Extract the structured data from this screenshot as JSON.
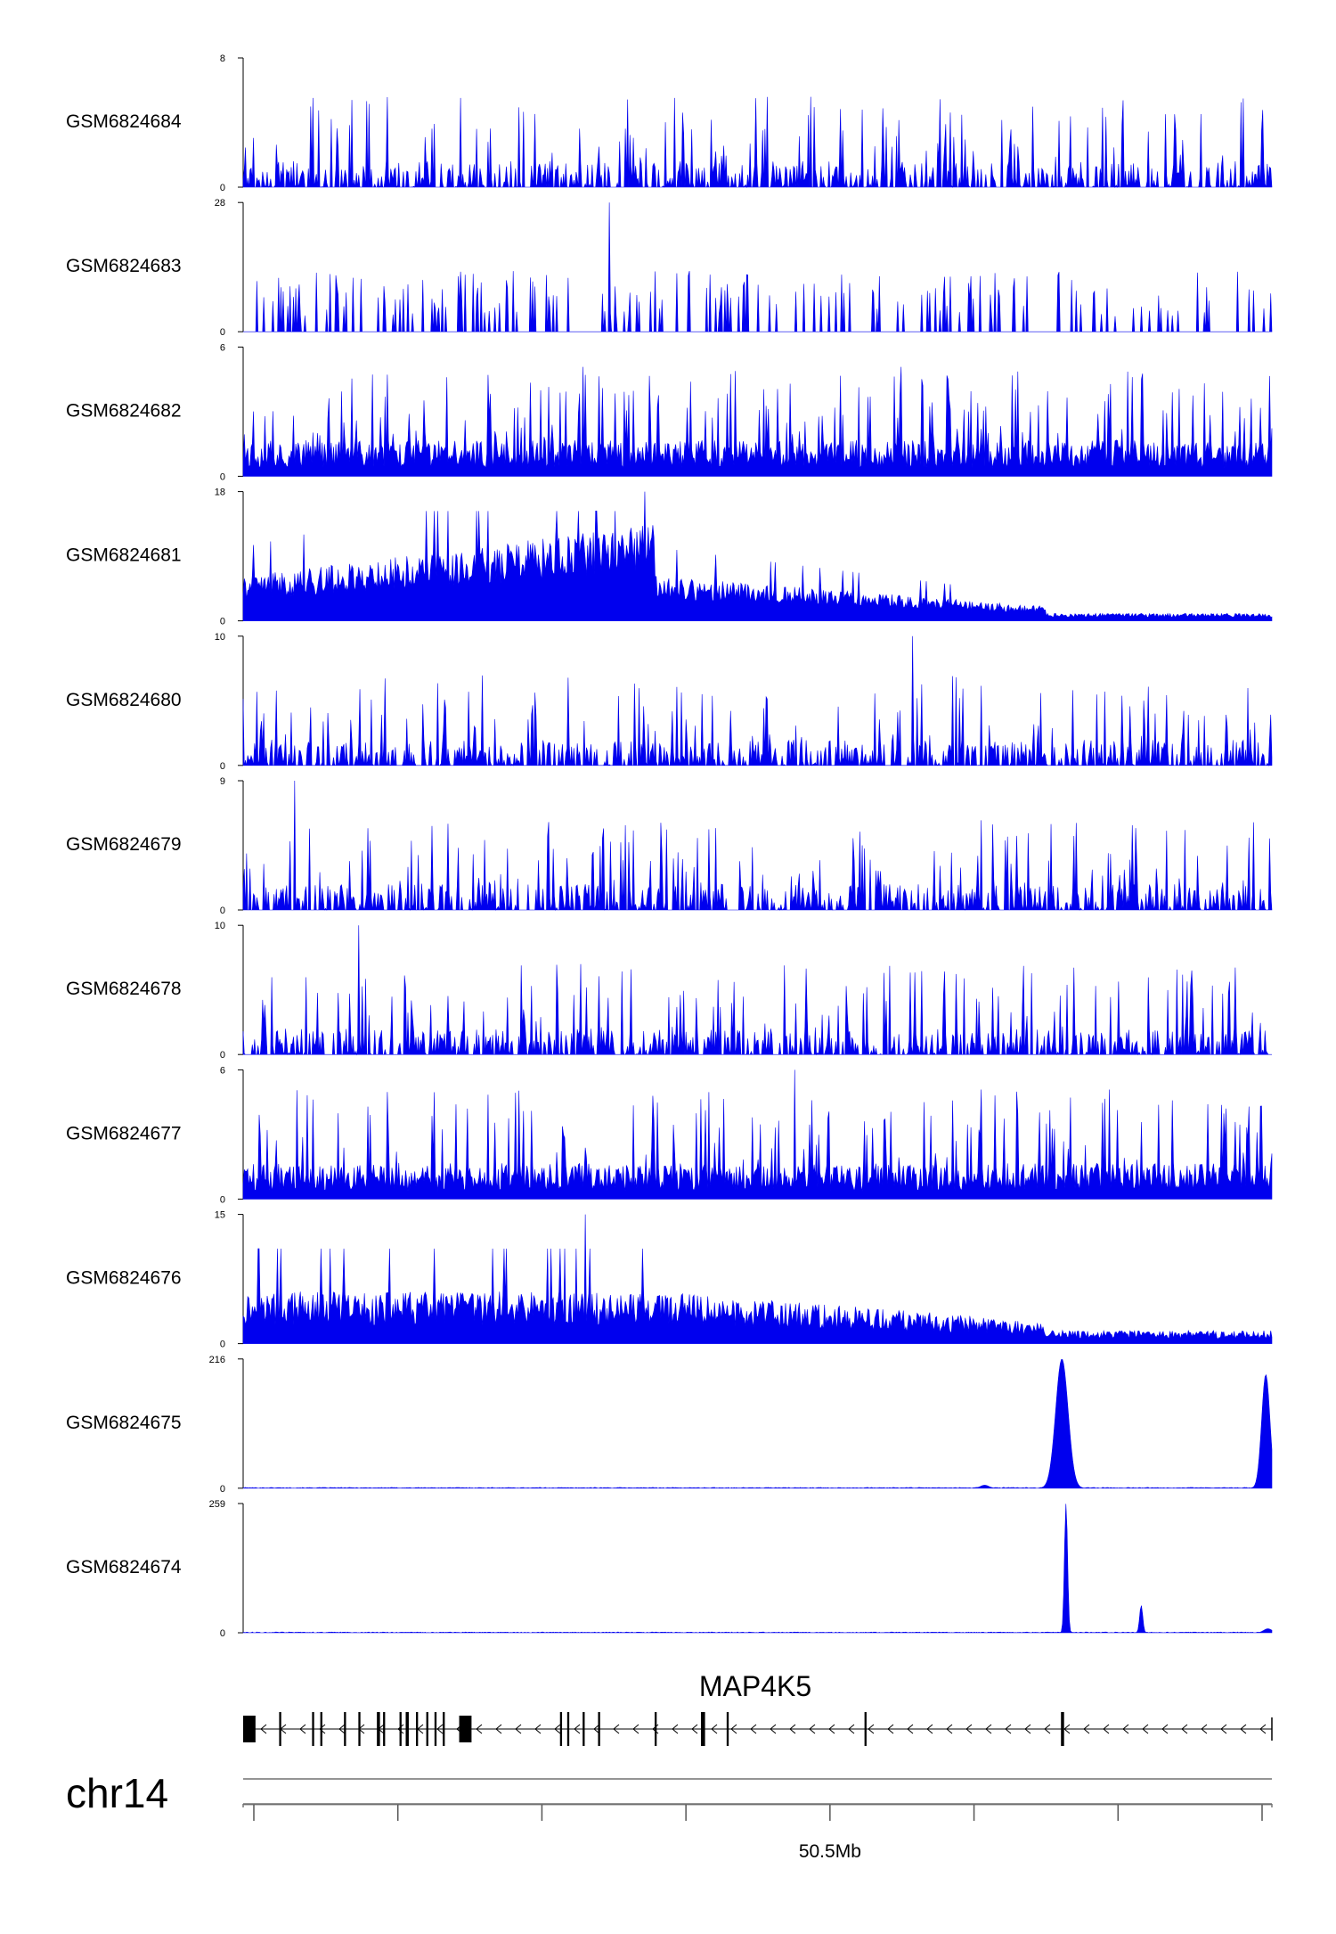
{
  "colors": {
    "signal": "#0000ee",
    "axis": "#000000",
    "gene": "#000000"
  },
  "chart_data": {
    "type": "area",
    "title": "",
    "chromosome": "chr14",
    "x_range_mb": [
      50.3,
      50.65
    ],
    "x_ticks_mb": [
      50.3,
      50.35,
      50.4,
      50.45,
      50.5,
      50.55,
      50.6,
      50.65
    ],
    "x_tick_label": "50.5Mb",
    "x_tick_label_position_mb": 50.5,
    "tracks": [
      {
        "name": "GSM6824684",
        "ymax": 8,
        "ymax_label": "8",
        "ymin_label": "0",
        "profile": "spiky",
        "seed": 11,
        "peaks": []
      },
      {
        "name": "GSM6824683",
        "ymax": 28,
        "ymax_label": "28",
        "ymin_label": "0",
        "profile": "sparse",
        "seed": 23,
        "peaks": [
          [
            0.355,
            28
          ]
        ]
      },
      {
        "name": "GSM6824682",
        "ymax": 6,
        "ymax_label": "6",
        "ymin_label": "0",
        "profile": "dense",
        "seed": 37,
        "peaks": []
      },
      {
        "name": "GSM6824681",
        "ymax": 18,
        "ymax_label": "18",
        "ymin_label": "0",
        "profile": "broad",
        "seed": 41,
        "peaks": [
          [
            0.39,
            18
          ]
        ]
      },
      {
        "name": "GSM6824680",
        "ymax": 10,
        "ymax_label": "10",
        "ymin_label": "0",
        "profile": "spiky",
        "seed": 53,
        "peaks": [
          [
            0.65,
            10
          ]
        ]
      },
      {
        "name": "GSM6824679",
        "ymax": 9,
        "ymax_label": "9",
        "ymin_label": "0",
        "profile": "spiky",
        "seed": 61,
        "peaks": [
          [
            0.05,
            9
          ]
        ]
      },
      {
        "name": "GSM6824678",
        "ymax": 10,
        "ymax_label": "10",
        "ymin_label": "0",
        "profile": "spiky",
        "seed": 73,
        "peaks": [
          [
            0.112,
            10
          ]
        ]
      },
      {
        "name": "GSM6824677",
        "ymax": 6,
        "ymax_label": "6",
        "ymin_label": "0",
        "profile": "dense",
        "seed": 89,
        "peaks": [
          [
            0.535,
            6
          ]
        ]
      },
      {
        "name": "GSM6824676",
        "ymax": 15,
        "ymax_label": "15",
        "ymin_label": "0",
        "profile": "broad2",
        "seed": 97,
        "peaks": [
          [
            0.332,
            15
          ]
        ]
      },
      {
        "name": "GSM6824675",
        "ymax": 216,
        "ymax_label": "216",
        "ymin_label": "0",
        "profile": "flatpeaks",
        "seed": 101,
        "peaks": [
          [
            0.795,
            216,
            0.006
          ],
          [
            0.993,
            190,
            0.004
          ],
          [
            0.72,
            5,
            0.004
          ]
        ]
      },
      {
        "name": "GSM6824674",
        "ymax": 259,
        "ymax_label": "259",
        "ymin_label": "0",
        "profile": "flatpeaks",
        "seed": 113,
        "peaks": [
          [
            0.799,
            259,
            0.0015
          ],
          [
            0.872,
            55,
            0.0015
          ],
          [
            0.995,
            8,
            0.004
          ]
        ]
      }
    ],
    "gene": {
      "name": "MAP4K5",
      "strand": "-",
      "start_frac": 0.0,
      "end_frac": 1.0,
      "exons": [
        [
          0.0,
          0.012
        ],
        [
          0.035,
          0.037
        ],
        [
          0.067,
          0.069
        ],
        [
          0.075,
          0.077
        ],
        [
          0.098,
          0.1
        ],
        [
          0.112,
          0.114
        ],
        [
          0.13,
          0.133
        ],
        [
          0.136,
          0.138
        ],
        [
          0.152,
          0.154
        ],
        [
          0.158,
          0.161
        ],
        [
          0.168,
          0.17
        ],
        [
          0.178,
          0.18
        ],
        [
          0.186,
          0.188
        ],
        [
          0.194,
          0.196
        ],
        [
          0.21,
          0.222
        ],
        [
          0.308,
          0.31
        ],
        [
          0.315,
          0.317
        ],
        [
          0.33,
          0.332
        ],
        [
          0.345,
          0.347
        ],
        [
          0.4,
          0.402
        ],
        [
          0.445,
          0.449
        ],
        [
          0.47,
          0.472
        ],
        [
          0.604,
          0.606
        ],
        [
          0.795,
          0.798
        ]
      ]
    }
  }
}
